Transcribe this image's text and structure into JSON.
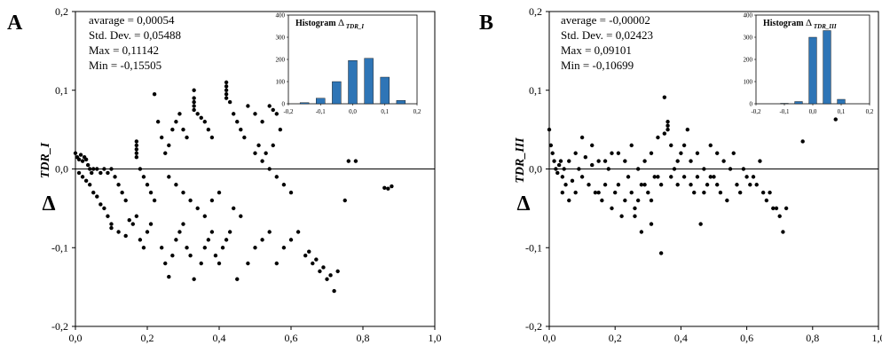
{
  "chart_data": [
    {
      "type": "scatter",
      "panel_label": "A",
      "ylabel_symbol": "Δ",
      "ylabel_sub": "TDR_I",
      "xlim": [
        0.0,
        1.0
      ],
      "ylim": [
        -0.2,
        0.2
      ],
      "xticks": [
        "0,0",
        "0,2",
        "0,4",
        "0,6",
        "0,8",
        "1,0"
      ],
      "yticks": [
        "-0,2",
        "-0,1",
        "0,0",
        "0,1",
        "0,2"
      ],
      "stats": [
        "avarage = 0,00054",
        "Std. Dev. = 0,05488",
        "Max = 0,11142",
        "Min = -0,15505"
      ],
      "points": [
        [
          0.0,
          0.02
        ],
        [
          0.005,
          0.015
        ],
        [
          0.01,
          0.012
        ],
        [
          0.015,
          0.018
        ],
        [
          0.02,
          0.01
        ],
        [
          0.025,
          0.015
        ],
        [
          0.03,
          0.012
        ],
        [
          0.035,
          0.005
        ],
        [
          0.04,
          0.0
        ],
        [
          0.045,
          -0.005
        ],
        [
          0.01,
          -0.005
        ],
        [
          0.02,
          -0.01
        ],
        [
          0.03,
          -0.015
        ],
        [
          0.04,
          -0.02
        ],
        [
          0.05,
          -0.03
        ],
        [
          0.06,
          -0.035
        ],
        [
          0.07,
          -0.045
        ],
        [
          0.08,
          -0.05
        ],
        [
          0.09,
          -0.06
        ],
        [
          0.1,
          -0.07
        ],
        [
          0.05,
          0.0
        ],
        [
          0.06,
          0.0
        ],
        [
          0.07,
          -0.005
        ],
        [
          0.08,
          0.0
        ],
        [
          0.09,
          -0.005
        ],
        [
          0.1,
          0.0
        ],
        [
          0.11,
          -0.01
        ],
        [
          0.12,
          -0.02
        ],
        [
          0.13,
          -0.03
        ],
        [
          0.14,
          -0.04
        ],
        [
          0.1,
          -0.075
        ],
        [
          0.12,
          -0.08
        ],
        [
          0.14,
          -0.085
        ],
        [
          0.15,
          -0.065
        ],
        [
          0.16,
          -0.07
        ],
        [
          0.17,
          -0.06
        ],
        [
          0.18,
          -0.09
        ],
        [
          0.19,
          -0.1
        ],
        [
          0.2,
          -0.08
        ],
        [
          0.21,
          -0.07
        ],
        [
          0.17,
          0.02
        ],
        [
          0.17,
          0.025
        ],
        [
          0.17,
          0.03
        ],
        [
          0.17,
          0.035
        ],
        [
          0.17,
          0.015
        ],
        [
          0.18,
          0.0
        ],
        [
          0.19,
          -0.01
        ],
        [
          0.2,
          -0.02
        ],
        [
          0.21,
          -0.03
        ],
        [
          0.22,
          -0.04
        ],
        [
          0.22,
          0.095
        ],
        [
          0.23,
          0.06
        ],
        [
          0.24,
          0.04
        ],
        [
          0.25,
          0.02
        ],
        [
          0.26,
          0.03
        ],
        [
          0.27,
          0.05
        ],
        [
          0.28,
          0.06
        ],
        [
          0.29,
          0.07
        ],
        [
          0.3,
          0.05
        ],
        [
          0.31,
          0.04
        ],
        [
          0.33,
          0.1
        ],
        [
          0.33,
          0.09
        ],
        [
          0.33,
          0.085
        ],
        [
          0.33,
          0.08
        ],
        [
          0.33,
          0.075
        ],
        [
          0.34,
          0.07
        ],
        [
          0.35,
          0.065
        ],
        [
          0.36,
          0.06
        ],
        [
          0.37,
          0.05
        ],
        [
          0.38,
          0.04
        ],
        [
          0.42,
          0.11
        ],
        [
          0.42,
          0.105
        ],
        [
          0.42,
          0.1
        ],
        [
          0.42,
          0.095
        ],
        [
          0.42,
          0.09
        ],
        [
          0.43,
          0.085
        ],
        [
          0.44,
          0.07
        ],
        [
          0.45,
          0.06
        ],
        [
          0.46,
          0.05
        ],
        [
          0.47,
          0.04
        ],
        [
          0.24,
          -0.1
        ],
        [
          0.25,
          -0.12
        ],
        [
          0.26,
          -0.137
        ],
        [
          0.27,
          -0.11
        ],
        [
          0.28,
          -0.09
        ],
        [
          0.29,
          -0.08
        ],
        [
          0.3,
          -0.07
        ],
        [
          0.31,
          -0.1
        ],
        [
          0.32,
          -0.11
        ],
        [
          0.33,
          -0.14
        ],
        [
          0.35,
          -0.12
        ],
        [
          0.36,
          -0.1
        ],
        [
          0.37,
          -0.09
        ],
        [
          0.38,
          -0.08
        ],
        [
          0.39,
          -0.11
        ],
        [
          0.4,
          -0.12
        ],
        [
          0.41,
          -0.1
        ],
        [
          0.42,
          -0.09
        ],
        [
          0.43,
          -0.08
        ],
        [
          0.45,
          -0.14
        ],
        [
          0.48,
          -0.12
        ],
        [
          0.5,
          -0.1
        ],
        [
          0.52,
          -0.09
        ],
        [
          0.54,
          -0.08
        ],
        [
          0.56,
          -0.12
        ],
        [
          0.58,
          -0.1
        ],
        [
          0.6,
          -0.09
        ],
        [
          0.62,
          -0.08
        ],
        [
          0.64,
          -0.11
        ],
        [
          0.66,
          -0.12
        ],
        [
          0.68,
          -0.13
        ],
        [
          0.7,
          -0.14
        ],
        [
          0.72,
          -0.155
        ],
        [
          0.71,
          -0.135
        ],
        [
          0.73,
          -0.13
        ],
        [
          0.69,
          -0.125
        ],
        [
          0.67,
          -0.115
        ],
        [
          0.65,
          -0.105
        ],
        [
          0.75,
          -0.04
        ],
        [
          0.76,
          0.01
        ],
        [
          0.78,
          0.01
        ],
        [
          0.87,
          -0.025
        ],
        [
          0.88,
          -0.022
        ],
        [
          0.86,
          -0.024
        ],
        [
          0.5,
          0.02
        ],
        [
          0.52,
          0.01
        ],
        [
          0.54,
          0.0
        ],
        [
          0.56,
          -0.01
        ],
        [
          0.58,
          -0.02
        ],
        [
          0.6,
          -0.03
        ],
        [
          0.48,
          0.08
        ],
        [
          0.5,
          0.07
        ],
        [
          0.52,
          0.06
        ],
        [
          0.54,
          0.08
        ],
        [
          0.55,
          0.075
        ],
        [
          0.56,
          0.07
        ],
        [
          0.57,
          0.05
        ],
        [
          0.55,
          0.03
        ],
        [
          0.53,
          0.02
        ],
        [
          0.51,
          0.03
        ],
        [
          0.26,
          -0.01
        ],
        [
          0.28,
          -0.02
        ],
        [
          0.3,
          -0.03
        ],
        [
          0.32,
          -0.04
        ],
        [
          0.34,
          -0.05
        ],
        [
          0.36,
          -0.06
        ],
        [
          0.38,
          -0.04
        ],
        [
          0.4,
          -0.03
        ],
        [
          0.44,
          -0.05
        ],
        [
          0.46,
          -0.06
        ]
      ],
      "inset": {
        "type": "bar",
        "title": "Histogram",
        "title_symbol": "Δ",
        "title_sub": "TDR_I",
        "bin_centers": [
          -0.15,
          -0.1,
          -0.05,
          0.0,
          0.05,
          0.1,
          0.15,
          0.2
        ],
        "values": [
          5,
          25,
          100,
          195,
          205,
          120,
          15,
          0
        ],
        "xlim": [
          -0.2,
          0.2
        ],
        "ylim": [
          0,
          400
        ],
        "xticks": [
          "-0,2",
          "-0,1",
          "0,0",
          "0,1",
          "0,2"
        ],
        "yticks": [
          "0",
          "100",
          "200",
          "300",
          "400"
        ],
        "bar_color": "#2E75B6"
      }
    },
    {
      "type": "scatter",
      "panel_label": "B",
      "ylabel_symbol": "Δ",
      "ylabel_sub": "TDR_III",
      "xlim": [
        0.0,
        1.0
      ],
      "ylim": [
        -0.2,
        0.2
      ],
      "xticks": [
        "0,0",
        "0,2",
        "0,4",
        "0,6",
        "0,8",
        "1,0"
      ],
      "yticks": [
        "-0,2",
        "-0,1",
        "0,0",
        "0,1",
        "0,2"
      ],
      "stats": [
        "average = -0,00002",
        "Std. Dev. = 0,02423",
        "Max = 0,09101",
        "Min = -0,10699"
      ],
      "points": [
        [
          0.0,
          0.05
        ],
        [
          0.005,
          0.03
        ],
        [
          0.01,
          0.02
        ],
        [
          0.015,
          0.01
        ],
        [
          0.02,
          0.0
        ],
        [
          0.025,
          -0.005
        ],
        [
          0.03,
          0.005
        ],
        [
          0.035,
          0.01
        ],
        [
          0.04,
          -0.01
        ],
        [
          0.045,
          0.0
        ],
        [
          0.05,
          -0.02
        ],
        [
          0.06,
          0.01
        ],
        [
          0.07,
          -0.015
        ],
        [
          0.08,
          0.02
        ],
        [
          0.09,
          0.0
        ],
        [
          0.1,
          -0.01
        ],
        [
          0.11,
          0.015
        ],
        [
          0.12,
          -0.02
        ],
        [
          0.13,
          0.005
        ],
        [
          0.14,
          -0.03
        ],
        [
          0.15,
          0.01
        ],
        [
          0.16,
          -0.04
        ],
        [
          0.17,
          -0.02
        ],
        [
          0.18,
          0.0
        ],
        [
          0.19,
          -0.05
        ],
        [
          0.2,
          -0.03
        ],
        [
          0.21,
          0.02
        ],
        [
          0.22,
          -0.06
        ],
        [
          0.23,
          -0.04
        ],
        [
          0.24,
          -0.01
        ],
        [
          0.25,
          0.03
        ],
        [
          0.26,
          -0.05
        ],
        [
          0.27,
          0.0
        ],
        [
          0.28,
          -0.02
        ],
        [
          0.29,
          0.01
        ],
        [
          0.3,
          -0.03
        ],
        [
          0.31,
          0.02
        ],
        [
          0.32,
          -0.01
        ],
        [
          0.33,
          0.04
        ],
        [
          0.34,
          -0.02
        ],
        [
          0.35,
          0.045
        ],
        [
          0.36,
          0.05
        ],
        [
          0.36,
          0.055
        ],
        [
          0.36,
          0.06
        ],
        [
          0.37,
          0.03
        ],
        [
          0.38,
          0.0
        ],
        [
          0.39,
          -0.02
        ],
        [
          0.4,
          0.02
        ],
        [
          0.41,
          -0.01
        ],
        [
          0.42,
          0.05
        ],
        [
          0.43,
          0.01
        ],
        [
          0.44,
          -0.03
        ],
        [
          0.45,
          0.02
        ],
        [
          0.46,
          -0.07
        ],
        [
          0.47,
          0.0
        ],
        [
          0.48,
          -0.02
        ],
        [
          0.49,
          0.03
        ],
        [
          0.5,
          -0.01
        ],
        [
          0.51,
          0.02
        ],
        [
          0.52,
          -0.03
        ],
        [
          0.53,
          0.01
        ],
        [
          0.54,
          -0.04
        ],
        [
          0.55,
          0.0
        ],
        [
          0.56,
          0.02
        ],
        [
          0.57,
          -0.02
        ],
        [
          0.58,
          -0.03
        ],
        [
          0.59,
          0.0
        ],
        [
          0.6,
          -0.01
        ],
        [
          0.61,
          -0.02
        ],
        [
          0.62,
          -0.01
        ],
        [
          0.63,
          -0.02
        ],
        [
          0.64,
          0.01
        ],
        [
          0.65,
          -0.03
        ],
        [
          0.66,
          -0.04
        ],
        [
          0.67,
          -0.03
        ],
        [
          0.68,
          -0.05
        ],
        [
          0.69,
          -0.05
        ],
        [
          0.7,
          -0.06
        ],
        [
          0.71,
          -0.08
        ],
        [
          0.72,
          -0.05
        ],
        [
          0.35,
          0.091
        ],
        [
          0.34,
          -0.107
        ],
        [
          0.26,
          -0.06
        ],
        [
          0.28,
          -0.08
        ],
        [
          0.31,
          -0.07
        ],
        [
          0.13,
          0.03
        ],
        [
          0.1,
          0.04
        ],
        [
          0.08,
          -0.03
        ],
        [
          0.06,
          -0.04
        ],
        [
          0.04,
          -0.03
        ],
        [
          0.77,
          0.035
        ],
        [
          0.87,
          0.063
        ],
        [
          0.15,
          -0.03
        ],
        [
          0.17,
          0.01
        ],
        [
          0.19,
          0.02
        ],
        [
          0.21,
          -0.02
        ],
        [
          0.23,
          0.01
        ],
        [
          0.25,
          -0.03
        ],
        [
          0.27,
          -0.04
        ],
        [
          0.29,
          -0.02
        ],
        [
          0.31,
          -0.04
        ],
        [
          0.33,
          -0.01
        ],
        [
          0.37,
          -0.01
        ],
        [
          0.39,
          0.01
        ],
        [
          0.41,
          0.03
        ],
        [
          0.43,
          -0.02
        ],
        [
          0.45,
          -0.01
        ],
        [
          0.47,
          -0.03
        ],
        [
          0.49,
          -0.01
        ],
        [
          0.51,
          -0.02
        ]
      ],
      "inset": {
        "type": "bar",
        "title": "Histogram",
        "title_symbol": "Δ",
        "title_sub": "TDR_III",
        "bin_centers": [
          -0.15,
          -0.1,
          -0.05,
          0.0,
          0.05,
          0.1,
          0.15,
          0.2
        ],
        "values": [
          0,
          2,
          10,
          300,
          330,
          20,
          0,
          0
        ],
        "xlim": [
          -0.2,
          0.2
        ],
        "ylim": [
          0,
          400
        ],
        "xticks": [
          "-0,2",
          "-0,1",
          "0,0",
          "0,1",
          "0,2"
        ],
        "yticks": [
          "0",
          "100",
          "200",
          "300",
          "400"
        ],
        "bar_color": "#2E75B6"
      }
    }
  ]
}
